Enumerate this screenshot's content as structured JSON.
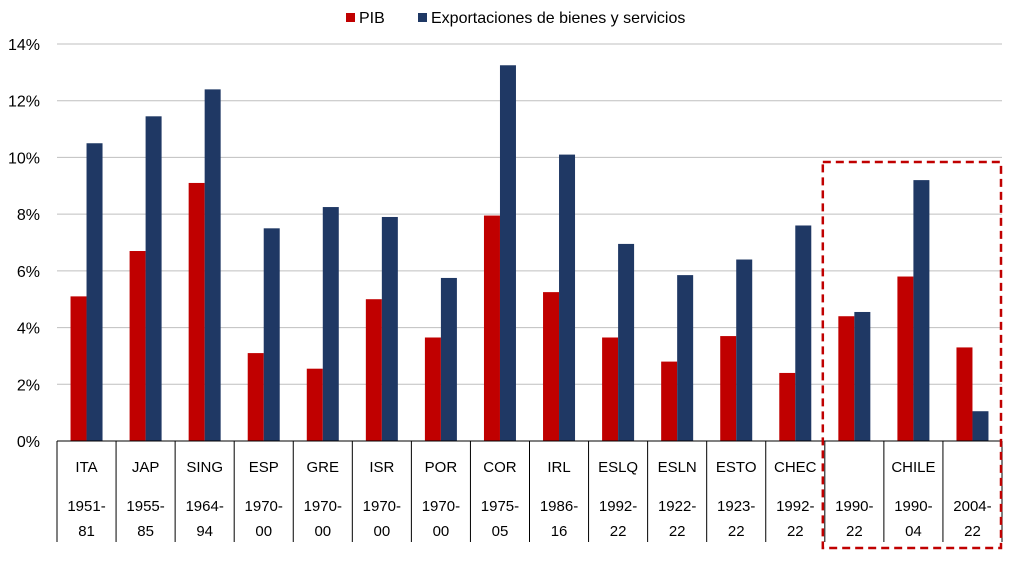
{
  "chart_data": {
    "type": "bar",
    "title": "",
    "xlabel": "",
    "ylabel": "",
    "ylim": [
      0,
      14
    ],
    "yticks": [
      "0%",
      "2%",
      "4%",
      "6%",
      "8%",
      "10%",
      "12%",
      "14%"
    ],
    "grid": true,
    "legend": "top-center",
    "categories": [
      {
        "country": "ITA",
        "period": "1951-81"
      },
      {
        "country": "JAP",
        "period": "1955-85"
      },
      {
        "country": "SING",
        "period": "1964-94"
      },
      {
        "country": "ESP",
        "period": "1970-00"
      },
      {
        "country": "GRE",
        "period": "1970-00"
      },
      {
        "country": "ISR",
        "period": "1970-00"
      },
      {
        "country": "POR",
        "period": "1970-00"
      },
      {
        "country": "COR",
        "period": "1975-05"
      },
      {
        "country": "IRL",
        "period": "1986-16"
      },
      {
        "country": "ESLQ",
        "period": "1992-22"
      },
      {
        "country": "ESLN",
        "period": "1922-22"
      },
      {
        "country": "ESTO",
        "period": "1923-22"
      },
      {
        "country": "CHEC",
        "period": "1992-22"
      },
      {
        "country": "",
        "period": "1990-22"
      },
      {
        "country": "CHILE",
        "period": "1990-04"
      },
      {
        "country": "",
        "period": "2004-22"
      }
    ],
    "series": [
      {
        "name": "PIB",
        "color": "#c00000",
        "values": [
          5.1,
          6.7,
          9.1,
          3.1,
          2.55,
          5.0,
          3.65,
          7.95,
          5.25,
          3.65,
          2.8,
          3.7,
          2.4,
          4.4,
          5.8,
          3.3
        ]
      },
      {
        "name": "Exportaciones de bienes y servicios",
        "color": "#1f3864",
        "values": [
          10.5,
          11.45,
          12.4,
          7.5,
          8.25,
          7.9,
          5.75,
          13.25,
          10.1,
          6.95,
          5.85,
          6.4,
          7.6,
          4.55,
          9.2,
          1.05
        ]
      }
    ],
    "highlight": {
      "from_index": 13,
      "to_index": 15,
      "style": "dashed",
      "color": "#c00000"
    }
  }
}
